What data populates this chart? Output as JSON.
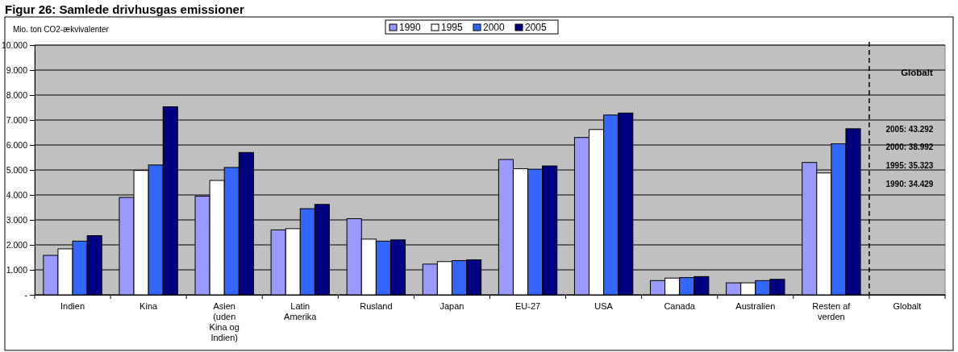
{
  "chart_data": {
    "type": "bar",
    "title": "Figur 26: Samlede drivhusgas emissioner",
    "ylabel": "Mio. ton CO2-ækvivalenter",
    "categories": [
      "Indien",
      "Kina",
      "Asien (uden Kina og Indien)",
      "Latin Amerika",
      "Rusland",
      "Japan",
      "EU-27",
      "USA",
      "Canada",
      "Australien",
      "Resten af verden",
      "Globalt"
    ],
    "series": [
      {
        "name": "1990",
        "color": "#9999ff",
        "values": [
          1580,
          3900,
          3950,
          2600,
          3050,
          1230,
          5420,
          6300,
          570,
          480,
          5300,
          null
        ]
      },
      {
        "name": "1995",
        "color": "#ffffff",
        "values": [
          1840,
          4980,
          4580,
          2650,
          2230,
          1330,
          5050,
          6620,
          670,
          480,
          4880,
          null
        ]
      },
      {
        "name": "2000",
        "color": "#3366ff",
        "values": [
          2150,
          5200,
          5100,
          3450,
          2150,
          1370,
          5030,
          7200,
          690,
          570,
          6050,
          null
        ]
      },
      {
        "name": "2005",
        "color": "#000080",
        "values": [
          2370,
          7530,
          5700,
          3620,
          2200,
          1400,
          5160,
          7280,
          730,
          620,
          6650,
          null
        ]
      }
    ],
    "ylim": [
      0,
      10000
    ],
    "yticks": [
      {
        "value": 0,
        "label": "-"
      },
      {
        "value": 1000,
        "label": "1.000"
      },
      {
        "value": 2000,
        "label": "2.000"
      },
      {
        "value": 3000,
        "label": "3.000"
      },
      {
        "value": 4000,
        "label": "4.000"
      },
      {
        "value": 5000,
        "label": "5.000"
      },
      {
        "value": 6000,
        "label": "6.000"
      },
      {
        "value": 7000,
        "label": "7.000"
      },
      {
        "value": 8000,
        "label": "8.000"
      },
      {
        "value": 9000,
        "label": "9.000"
      },
      {
        "value": 10000,
        "label": "10.000"
      }
    ],
    "grid": "y",
    "legend": "top",
    "annotations": [
      "Globalt",
      "2005: 43.292",
      "2000: 38.992",
      "1995: 35.323",
      "1990: 34.429"
    ]
  }
}
